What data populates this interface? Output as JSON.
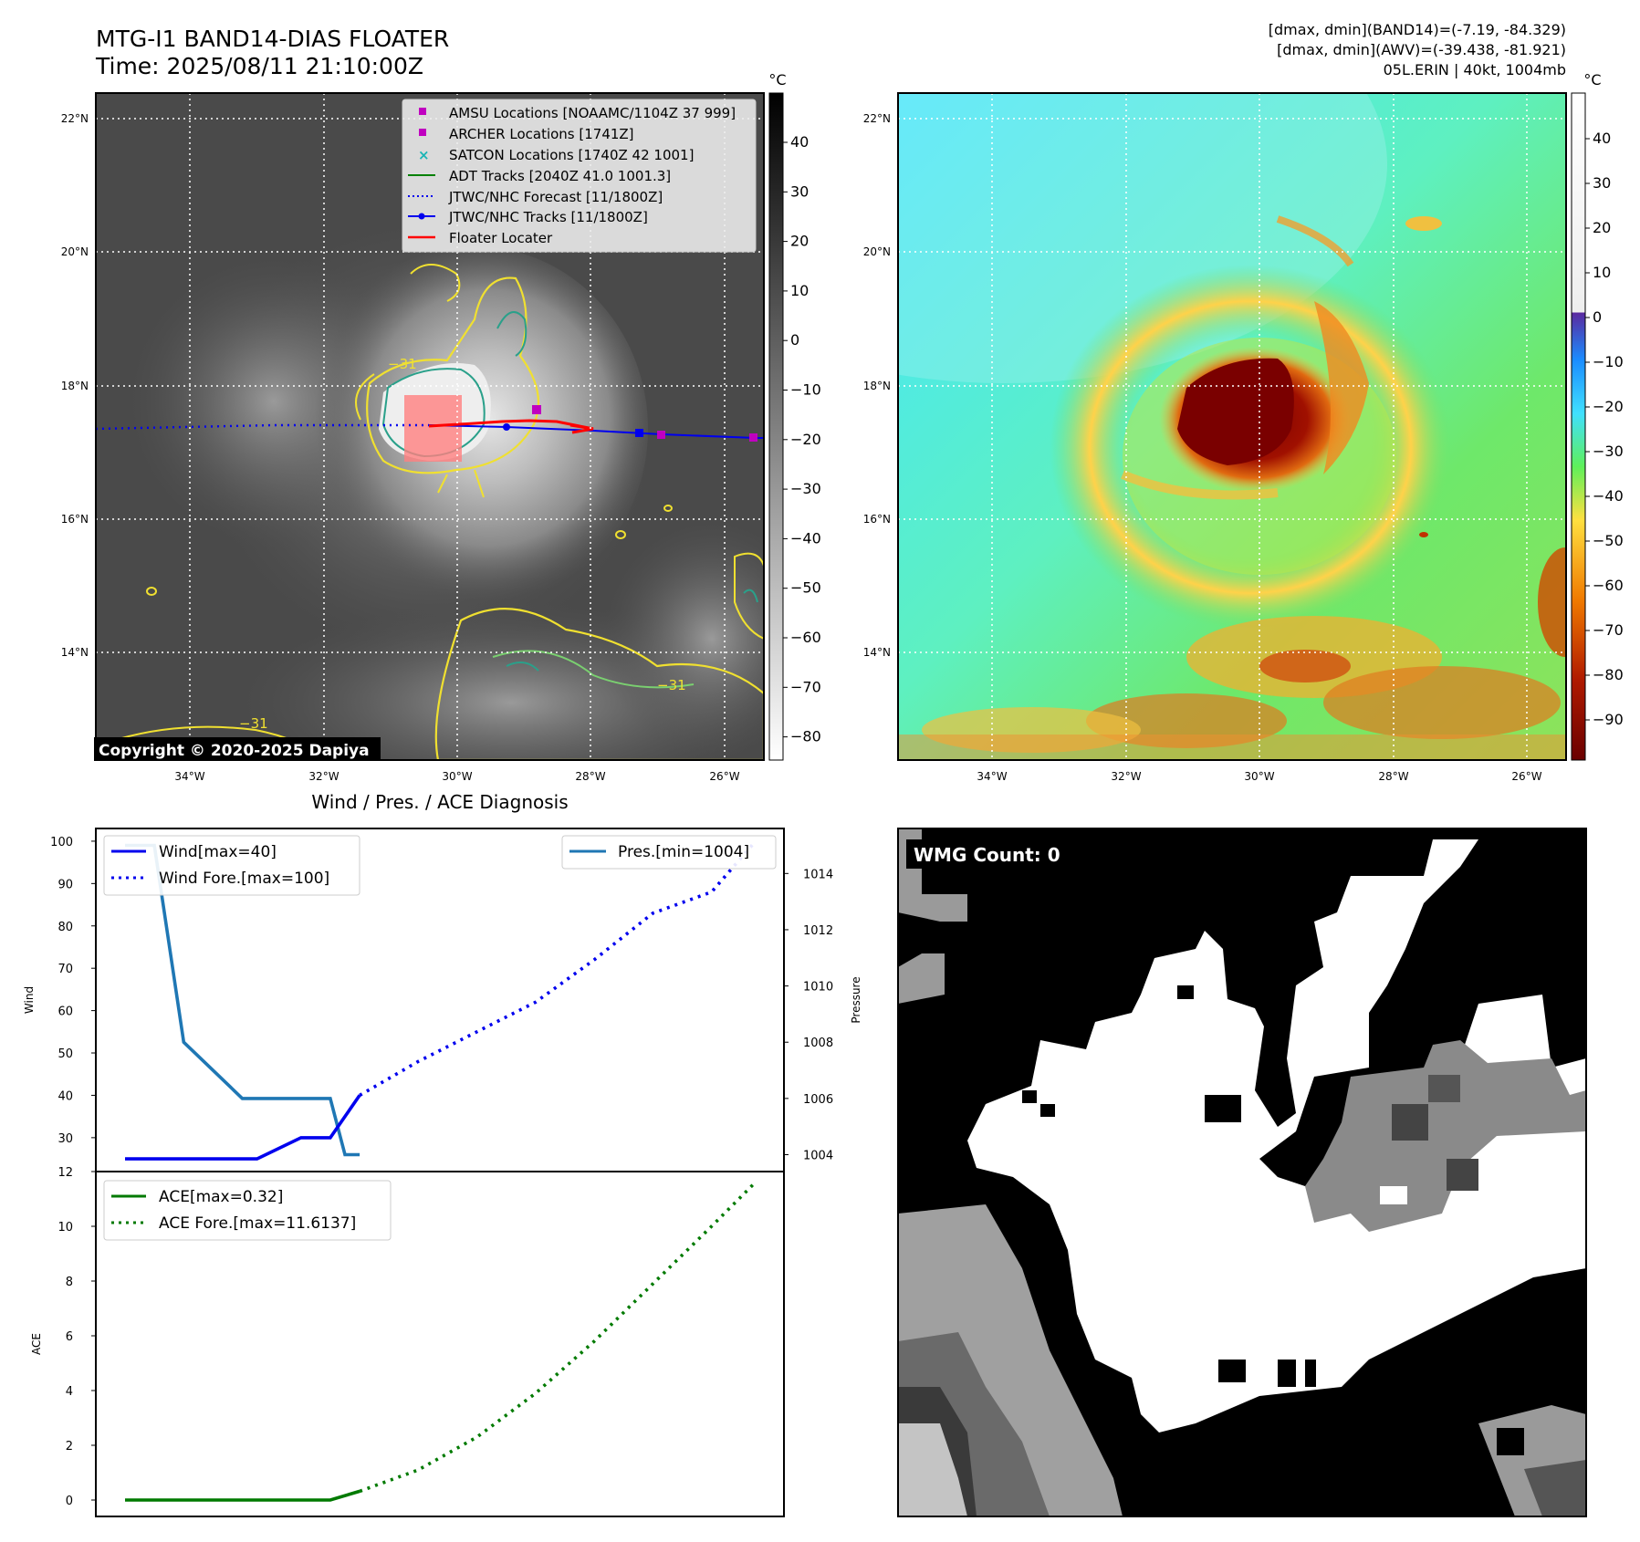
{
  "header": {
    "title_line1": "MTG-I1 BAND14-DIAS FLOATER",
    "title_line2": "Time: 2025/08/11 21:10:00Z",
    "info_line1": "[dmax, dmin](BAND14)=(-7.19, -84.329)",
    "info_line2": "[dmax, dmin](AWV)=(-39.438, -81.921)",
    "info_line3": "05L.ERIN | 40kt, 1004mb"
  },
  "colors": {
    "amsu": "#c000c0",
    "archer": "#c000c0",
    "satcon": "#1ab5b5",
    "adt": "#008000",
    "forecast": "#0000ee",
    "tracks": "#0000ee",
    "floater": "#ff0000",
    "wind": "#0000ee",
    "pres": "#1f77b4",
    "ace": "#007a00"
  },
  "map": {
    "lat_labels": [
      "22°N",
      "20°N",
      "18°N",
      "16°N",
      "14°N"
    ],
    "lon_labels": [
      "34°W",
      "32°W",
      "30°W",
      "28°W",
      "26°W"
    ],
    "cbar_unit": "°C",
    "cbar_gray_ticks": [
      "40",
      "30",
      "20",
      "10",
      "0",
      "−10",
      "−20",
      "−30",
      "−40",
      "−50",
      "−60",
      "−70",
      "−80"
    ],
    "cbar_color_ticks": [
      "40",
      "30",
      "20",
      "10",
      "0",
      "−10",
      "−20",
      "−30",
      "−40",
      "−50",
      "−60",
      "−70",
      "−80",
      "−90"
    ],
    "copyright": "Copyright © 2020-2025 Dapiya",
    "contour_label": "−31",
    "legend": [
      {
        "label": "AMSU Locations [NOAAMC/1104Z 37 999]",
        "kind": "square-magenta"
      },
      {
        "label": "ARCHER Locations [1741Z]",
        "kind": "square-magenta"
      },
      {
        "label": "SATCON Locations [1740Z 42 1001]",
        "kind": "x-cyan"
      },
      {
        "label": "ADT Tracks [2040Z 41.0 1001.3]",
        "kind": "line-green"
      },
      {
        "label": "JTWC/NHC Forecast [11/1800Z]",
        "kind": "dotted-blue"
      },
      {
        "label": "JTWC/NHC Tracks [11/1800Z]",
        "kind": "line-dot-blue"
      },
      {
        "label": "Floater Locater",
        "kind": "line-red"
      }
    ]
  },
  "diag": {
    "title": "Wind / Pres. / ACE Diagnosis",
    "wind_ylabel": "Wind",
    "pres_ylabel": "Pressure",
    "ace_ylabel": "ACE",
    "legend_wind": "Wind[max=40]",
    "legend_wind_fore": "Wind Fore.[max=100]",
    "legend_pres": "Pres.[min=1004]",
    "legend_ace": "ACE[max=0.32]",
    "legend_ace_fore": "ACE Fore.[max=11.6137]"
  },
  "wmg": {
    "label": "WMG Count: 0"
  },
  "chart_data": [
    {
      "type": "line",
      "title": "Wind / Pres. / ACE Diagnosis",
      "ylabel": "Wind",
      "ylim": [
        22,
        103
      ],
      "yticks": [
        30,
        40,
        50,
        60,
        70,
        80,
        90,
        100
      ],
      "series": [
        {
          "name": "Wind[max=40]",
          "x": [
            0,
            6,
            12,
            18,
            24,
            28,
            32
          ],
          "values": [
            25,
            25,
            25,
            25,
            30,
            30,
            40
          ]
        },
        {
          "name": "Wind Fore.[max=100]",
          "x": [
            32,
            40,
            48,
            56,
            64,
            72,
            80,
            86
          ],
          "values": [
            40,
            48,
            55,
            62,
            72,
            83,
            88,
            100
          ]
        }
      ]
    },
    {
      "type": "line",
      "ylabel": "Pressure",
      "ylim": [
        1003.4,
        1015.6
      ],
      "yticks": [
        1004,
        1006,
        1008,
        1010,
        1012,
        1014
      ],
      "series": [
        {
          "name": "Pres.[min=1004]",
          "x": [
            0,
            4,
            8,
            16,
            28,
            30,
            32
          ],
          "values": [
            1015,
            1015,
            1008,
            1006,
            1006,
            1004,
            1004
          ]
        }
      ]
    },
    {
      "type": "line",
      "ylabel": "ACE",
      "ylim": [
        -0.6,
        12
      ],
      "yticks": [
        0,
        2,
        4,
        6,
        8,
        10,
        12
      ],
      "series": [
        {
          "name": "ACE[max=0.32]",
          "x": [
            0,
            28,
            32
          ],
          "values": [
            0,
            0,
            0.32
          ]
        },
        {
          "name": "ACE Fore.[max=11.6137]",
          "x": [
            32,
            40,
            48,
            56,
            64,
            72,
            80,
            86
          ],
          "values": [
            0.32,
            1.1,
            2.3,
            3.9,
            5.8,
            7.9,
            10.0,
            11.6137
          ]
        }
      ]
    }
  ]
}
